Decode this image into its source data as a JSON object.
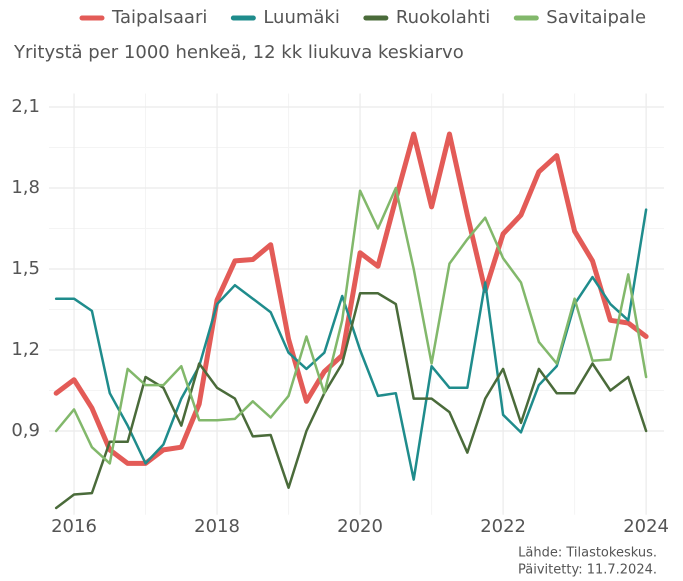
{
  "chart_data": {
    "type": "line",
    "subtitle": "Yritystä per 1000 henkeä, 12 kk liukuva keskiarvo",
    "caption": [
      "Lähde: Tilastokeskus.",
      "Päivitetty: 11.7.2024."
    ],
    "x": [
      2015.75,
      2016,
      2016.25,
      2016.5,
      2016.75,
      2017,
      2017.25,
      2017.5,
      2017.75,
      2018,
      2018.25,
      2018.5,
      2018.75,
      2019,
      2019.25,
      2019.5,
      2019.75,
      2020,
      2020.25,
      2020.5,
      2020.75,
      2021,
      2021.25,
      2021.5,
      2021.75,
      2022,
      2022.25,
      2022.5,
      2022.75,
      2023,
      2023.25,
      2023.5,
      2023.75,
      2024
    ],
    "series": [
      {
        "name": "Taipalsaari",
        "color": "#e35b57",
        "width": 5,
        "values": [
          1.04,
          1.09,
          0.985,
          0.83,
          0.78,
          0.78,
          0.83,
          0.84,
          1.0,
          1.385,
          1.53,
          1.535,
          1.59,
          1.24,
          1.01,
          1.12,
          1.18,
          1.56,
          1.51,
          1.76,
          2.0,
          1.73,
          2.0,
          1.7,
          1.42,
          1.63,
          1.7,
          1.86,
          1.92,
          1.64,
          1.53,
          1.31,
          1.3,
          1.25
        ]
      },
      {
        "name": "Luumäki",
        "color": "#1f8c8c",
        "width": 2.5,
        "values": [
          1.39,
          1.39,
          1.345,
          1.04,
          0.92,
          0.78,
          0.85,
          1.02,
          1.14,
          1.37,
          1.44,
          1.39,
          1.34,
          1.19,
          1.13,
          1.19,
          1.4,
          1.2,
          1.03,
          1.04,
          0.72,
          1.14,
          1.06,
          1.06,
          1.45,
          0.96,
          0.895,
          1.07,
          1.14,
          1.37,
          1.47,
          1.37,
          1.31,
          1.72
        ]
      },
      {
        "name": "Ruokolahti",
        "color": "#4a6b3a",
        "width": 2.5,
        "values": [
          0.615,
          0.665,
          0.67,
          0.86,
          0.86,
          1.1,
          1.06,
          0.92,
          1.15,
          1.06,
          1.02,
          0.88,
          0.885,
          0.69,
          0.9,
          1.04,
          1.15,
          1.41,
          1.41,
          1.37,
          1.02,
          1.02,
          0.97,
          0.82,
          1.02,
          1.13,
          0.93,
          1.13,
          1.04,
          1.04,
          1.15,
          1.05,
          1.1,
          0.9
        ]
      },
      {
        "name": "Savitaipale",
        "color": "#82b86b",
        "width": 2.5,
        "values": [
          0.9,
          0.98,
          0.84,
          0.78,
          1.13,
          1.07,
          1.07,
          1.14,
          0.94,
          0.94,
          0.945,
          1.01,
          0.95,
          1.03,
          1.25,
          1.04,
          1.31,
          1.79,
          1.65,
          1.8,
          1.5,
          1.15,
          1.52,
          1.61,
          1.69,
          1.54,
          1.45,
          1.23,
          1.15,
          1.39,
          1.16,
          1.165,
          1.48,
          1.1
        ]
      }
    ],
    "xlim": [
      2015.65,
      2024.25
    ],
    "xticks": [
      2016,
      2018,
      2020,
      2022,
      2024
    ],
    "ylim": [
      0.59,
      2.15
    ],
    "yticks": [
      {
        "value": 0.9,
        "label": "0,9"
      },
      {
        "value": 1.2,
        "label": "1,2"
      },
      {
        "value": 1.5,
        "label": "1,5"
      },
      {
        "value": 1.8,
        "label": "1,8"
      },
      {
        "value": 2.1,
        "label": "2,1"
      }
    ],
    "grid": true,
    "legend": "top"
  }
}
